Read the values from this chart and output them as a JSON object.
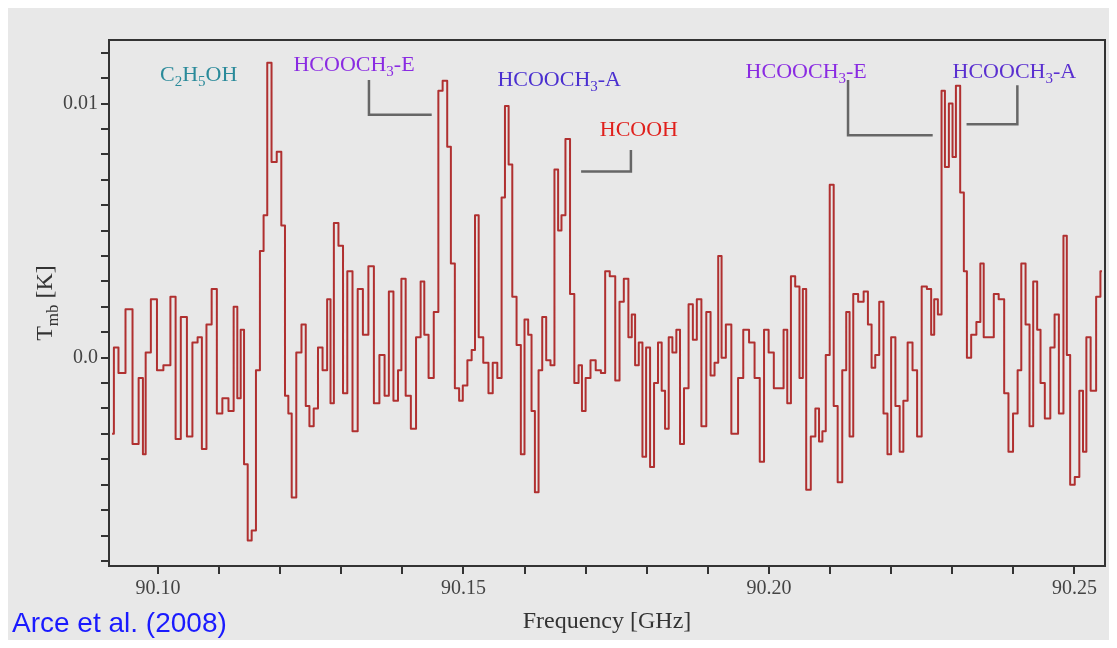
{
  "chart_data": {
    "type": "step",
    "xlabel": "Frequency [GHz]",
    "ylabel": "T$_{mb}$ [K]",
    "xlim": [
      90.092,
      90.255
    ],
    "xticks": [
      {
        "value": 90.1,
        "label": "90.10"
      },
      {
        "value": 90.11,
        "label": null
      },
      {
        "value": 90.12,
        "label": null
      },
      {
        "value": 90.13,
        "label": null
      },
      {
        "value": 90.14,
        "label": null
      },
      {
        "value": 90.15,
        "label": "90.15"
      },
      {
        "value": 90.16,
        "label": null
      },
      {
        "value": 90.17,
        "label": null
      },
      {
        "value": 90.18,
        "label": null
      },
      {
        "value": 90.19,
        "label": null
      },
      {
        "value": 90.2,
        "label": "90.20"
      },
      {
        "value": 90.21,
        "label": null
      },
      {
        "value": 90.22,
        "label": null
      },
      {
        "value": 90.23,
        "label": null
      },
      {
        "value": 90.24,
        "label": null
      },
      {
        "value": 90.25,
        "label": "90.25"
      }
    ],
    "ylim": [
      -0.0082,
      0.0125
    ],
    "yticks": [
      {
        "value": -0.008,
        "label": null
      },
      {
        "value": -0.007,
        "label": null
      },
      {
        "value": -0.006,
        "label": null
      },
      {
        "value": -0.005,
        "label": null
      },
      {
        "value": -0.004,
        "label": null
      },
      {
        "value": -0.003,
        "label": null
      },
      {
        "value": -0.002,
        "label": null
      },
      {
        "value": -0.001,
        "label": null
      },
      {
        "value": 0,
        "label": "0.0"
      },
      {
        "value": 0.001,
        "label": null
      },
      {
        "value": 0.002,
        "label": null
      },
      {
        "value": 0.003,
        "label": null
      },
      {
        "value": 0.004,
        "label": null
      },
      {
        "value": 0.005,
        "label": null
      },
      {
        "value": 0.006,
        "label": null
      },
      {
        "value": 0.007,
        "label": null
      },
      {
        "value": 0.008,
        "label": null
      },
      {
        "value": 0.009,
        "label": null
      },
      {
        "value": 0.01,
        "label": "0.01"
      },
      {
        "value": 0.011,
        "label": null
      },
      {
        "value": 0.012,
        "label": null
      }
    ],
    "series": [
      {
        "color": "#b03030",
        "x": [
          90.0925,
          90.0931,
          90.094,
          90.0954,
          90.0963,
          90.0974,
          90.0977,
          90.0983,
          90.0994,
          90.1003,
          90.1015,
          90.1026,
          90.1032,
          90.1043,
          90.1052,
          90.1061,
          90.1069,
          90.1075,
          90.1084,
          90.1092,
          90.1101,
          90.111,
          90.1121,
          90.1127,
          90.1133,
          90.1138,
          90.1144,
          90.115,
          90.1157,
          90.1164,
          90.117,
          90.1176,
          90.1182,
          90.119,
          90.1199,
          90.1205,
          90.1211,
          90.1216,
          90.1222,
          90.1231,
          90.1239,
          90.1245,
          90.1251,
          90.1259,
          90.1265,
          90.1274,
          90.128,
          90.1285,
          90.1291,
          90.13,
          90.1306,
          90.1314,
          90.1323,
          90.1331,
          90.134,
          90.1349,
          90.1358,
          90.1367,
          90.1375,
          90.1381,
          90.139,
          90.1396,
          90.1401,
          90.141,
          90.1418,
          90.1427,
          90.1433,
          90.1439,
          90.1447,
          90.1456,
          90.1462,
          90.147,
          90.1477,
          90.1482,
          90.149,
          90.1496,
          90.1502,
          90.1511,
          90.1516,
          90.1522,
          90.1528,
          90.1537,
          90.1545,
          90.1551,
          90.156,
          90.1565,
          90.1571,
          90.1577,
          90.1583,
          90.1591,
          90.1597,
          90.1603,
          90.1609,
          90.1614,
          90.162,
          90.1626,
          90.1632,
          90.1639,
          90.1646,
          90.1652,
          90.1658,
          90.1663,
          90.1671,
          90.1678,
          90.1685,
          90.1692,
          90.1696,
          90.1704,
          90.1712,
          90.1721,
          90.1729,
          90.1735,
          90.1744,
          90.1753,
          90.1758,
          90.1767,
          90.1773,
          90.1778,
          90.1784,
          90.179,
          90.1796,
          90.1802,
          90.1809,
          90.1815,
          90.1822,
          90.1827,
          90.1833,
          90.1839,
          90.1845,
          90.1852,
          90.1857,
          90.1865,
          90.1872,
          90.1879,
          90.1885,
          90.1894,
          90.1901,
          90.1908,
          90.1914,
          90.192,
          90.1925,
          90.1934,
          90.1943,
          90.1946,
          90.1953,
          90.1963,
          90.1972,
          90.1981,
          90.1989,
          90.1995,
          90.2004,
          90.2012,
          90.2021,
          90.2027,
          90.2033,
          90.2039,
          90.2047,
          90.2053,
          90.2058,
          90.2064,
          90.2073,
          90.2079,
          90.2085,
          90.209,
          90.2096,
          90.2103,
          90.2109,
          90.2116,
          90.2124,
          90.2129,
          90.2135,
          90.2141,
          90.2151,
          90.2159,
          90.2165,
          90.2171,
          90.2177,
          90.2184,
          90.2191,
          90.2197,
          90.2203,
          90.2211,
          90.2217,
          90.2223,
          90.2231,
          90.2239,
          90.2246,
          90.2254,
          90.2263,
          90.2268,
          90.2273,
          90.228,
          90.2285,
          90.2291,
          90.2298,
          90.2303,
          90.2309,
          90.2317,
          90.2321,
          90.2327,
          90.2335,
          90.2344,
          90.2348,
          90.2355,
          90.2365,
          90.2371,
          90.2381,
          90.2389,
          90.2395,
          90.2404,
          90.241,
          90.2416,
          90.2424,
          90.2429,
          90.2436,
          90.2442,
          90.2447,
          90.2456,
          90.2465,
          90.247,
          90.2479,
          90.2485,
          90.249,
          90.2496,
          90.2505,
          90.2511,
          90.2517,
          90.2522,
          90.2531,
          90.254,
          90.2545
        ],
        "values": [
          -0.003,
          0.0004,
          -0.0006,
          0.0019,
          -0.0034,
          -0.0008,
          -0.0038,
          0.0002,
          0.0023,
          -0.0005,
          -0.0003,
          0.0024,
          -0.0032,
          0.0016,
          -0.0031,
          0.0006,
          0.0008,
          -0.0036,
          0.0013,
          0.0027,
          -0.0022,
          -0.0016,
          -0.0021,
          0.002,
          -0.0016,
          0.0011,
          -0.0042,
          -0.0072,
          -0.0068,
          -0.0005,
          0.0042,
          0.0056,
          0.0116,
          0.0077,
          0.0081,
          0.0052,
          -0.0015,
          -0.0022,
          -0.0055,
          0.0002,
          0.0013,
          -0.0019,
          -0.0027,
          -0.002,
          0.0004,
          -0.0005,
          0.0023,
          -0.0018,
          0.0053,
          0.0044,
          -0.0014,
          0.0034,
          -0.0029,
          0.0027,
          0.0009,
          0.0036,
          -0.0018,
          0.0001,
          -0.0015,
          0.0026,
          -0.0017,
          -0.0005,
          0.0031,
          -0.0015,
          -0.0028,
          0.0008,
          0.003,
          0.0009,
          -0.0008,
          0.0018,
          0.0105,
          0.0109,
          0.0083,
          0.0037,
          -0.0012,
          -0.0017,
          -0.0011,
          -0.0001,
          0.0003,
          0.0056,
          0.0008,
          -0.0002,
          -0.0014,
          -0.0002,
          -0.0008,
          0.0063,
          0.0099,
          0.0076,
          0.0024,
          0.0005,
          -0.0038,
          0.0015,
          0.0009,
          -0.0021,
          -0.0053,
          -0.0005,
          0.0016,
          -0.0001,
          -0.0003,
          0.0074,
          0.005,
          0.0056,
          0.0086,
          0.0025,
          -0.001,
          -0.0003,
          -0.0021,
          -0.0008,
          -0.0001,
          -0.0005,
          -0.0006,
          0.0034,
          0.0032,
          -0.0009,
          0.0022,
          0.0031,
          0.0008,
          0.0017,
          -0.0003,
          0.0006,
          -0.0039,
          0.0004,
          -0.0043,
          -0.001,
          0.0006,
          -0.0013,
          -0.0028,
          0.0008,
          0.0002,
          0.0011,
          -0.0034,
          -0.0012,
          0.0021,
          0.0007,
          0.0023,
          -0.0027,
          0.0018,
          -0.0007,
          -0.0002,
          0.004,
          0.0,
          0.0013,
          -0.003,
          -0.003,
          -0.0008,
          0.0011,
          0.0006,
          -0.0008,
          -0.0041,
          0.0011,
          0.0002,
          -0.0012,
          -0.0012,
          0.0011,
          -0.0018,
          0.0032,
          0.0028,
          -0.0008,
          0.0027,
          -0.0052,
          -0.0031,
          -0.002,
          -0.0033,
          -0.0029,
          0.0001,
          0.0068,
          -0.0019,
          -0.0049,
          -0.0005,
          0.0018,
          -0.0031,
          0.0025,
          0.0022,
          0.0026,
          0.0013,
          -0.0004,
          0.0001,
          0.0022,
          -0.0022,
          -0.0038,
          0.0008,
          -0.0019,
          -0.0037,
          -0.0017,
          0.0006,
          -0.0005,
          -0.0031,
          0.0028,
          0.0027,
          0.0009,
          0.0023,
          0.0017,
          0.0105,
          0.0075,
          0.01,
          0.0079,
          0.0107,
          0.0065,
          0.0034,
          0.0,
          0.0009,
          0.0014,
          0.0037,
          0.0008,
          0.0008,
          0.0025,
          0.0023,
          -0.0014,
          -0.0037,
          -0.0022,
          -0.0005,
          0.0037,
          0.0013,
          -0.0027,
          0.003,
          0.0011,
          -0.001,
          -0.0024,
          0.0004,
          0.0017,
          -0.0022,
          0.0048,
          0.0001,
          -0.005,
          -0.0047,
          -0.0013,
          -0.0037,
          0.0008,
          -0.0013,
          0.0024,
          0.0034
        ]
      }
    ],
    "annotations": [
      "C$_{2}$H$_{5}$OH",
      "HCOOCH$_{3}$-E",
      "HCOOCH$_{3}$-A",
      "HCOOH",
      "HCOOCH$_{3}$-E",
      "HCOOCH$_{3}$-A",
      "Arce et al. (2008)"
    ]
  }
}
